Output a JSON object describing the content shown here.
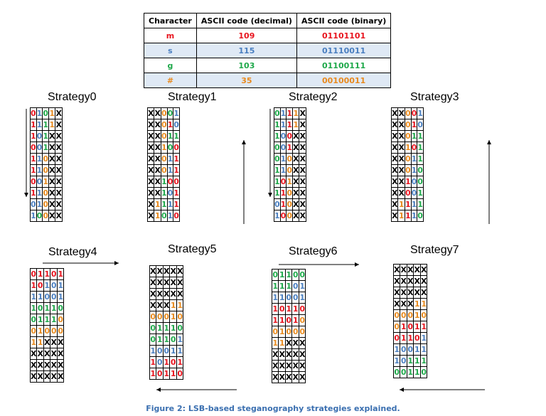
{
  "ascii_table": {
    "headers": [
      "Character",
      "ASCII code (decimal)",
      "ASCII code (binary)"
    ],
    "rows": [
      {
        "char": "m",
        "dec": "109",
        "bin": "01101101",
        "color": "#e8141e"
      },
      {
        "char": "s",
        "dec": "115",
        "bin": "01110011",
        "color": "#4a7fc0"
      },
      {
        "char": "g",
        "dec": "103",
        "bin": "01100111",
        "color": "#1ea84a"
      },
      {
        "char": "#",
        "dec": "35",
        "bin": "00100011",
        "color": "#e88a1e"
      }
    ]
  },
  "colors": {
    "R": "#e8141e",
    "B": "#4a7fc0",
    "G": "#1ea84a",
    "O": "#e88a1e",
    "X": "#000000"
  },
  "strategies": [
    {
      "title": "Strategy0",
      "arrow": "down-left",
      "rows": [
        "0R 1B 0G 1O X",
        "1R 1B 1G 1O X",
        "1R 0B 1G X X",
        "0R 0B 1G X X",
        "1R 1B 0O X X",
        "1R 1B 0O X X",
        "0R 0B 1O X X",
        "1R 1B 0O X X",
        "0B 1B 0O X X",
        "1B 0G 0O X X"
      ]
    },
    {
      "title": "Strategy1",
      "arrow": "up-right",
      "rows": [
        "X X 0O 0G 1B",
        "X X 0O 1R 0B",
        "X X 0O 1G 1G",
        "X X 1O 0G 0R",
        "X X 0O 1B 1R",
        "X X 0O 1B 1R",
        "X X 1G 0R 0R",
        "X X 1G 0B 1R",
        "X 1O 1G 1B 1R",
        "X 1O 0G 1B 0R"
      ]
    },
    {
      "title": "Strategy2",
      "arrow": "down-left",
      "rows": [
        "0G 1B 1R 1O X",
        "1G 1B 1R 1O X",
        "1G 0B 0R X X",
        "0G 0B 1R X X",
        "0G 1B 0O X X",
        "1G 1B 0O X X",
        "1G 0R 1O X X",
        "1G 1R 0O X X",
        "0B 1R 0O X X",
        "1B 0R 0O X X"
      ]
    },
    {
      "title": "Strategy3",
      "arrow": "up-right",
      "rows": [
        "X X 0O 0R 1B",
        "X X 0O 1R 0B",
        "X X 0O 1G 1G",
        "X X 1O 0R 1G",
        "X X 0O 1B 1G",
        "X X 0O 1B 0G",
        "X X 1R 0B 0G",
        "X X 0R 0B 1G",
        "X 1O 1R 1B 1G",
        "X 1O 1R 1B 0G"
      ]
    },
    {
      "title": "Strategy4",
      "arrow": "top-right",
      "rows": [
        "0R 1R 1R 0R 1R",
        "1R 0R 1B 0B 1B",
        "1B 1B 0B 0B 1B",
        "1G 0G 1G 1G 0G",
        "0G 1G 1G 1G 0O",
        "0O 1O 0O 0O 0O",
        "1O 1O X X X",
        "X X X X X",
        "X X X X X",
        "X X X X X"
      ]
    },
    {
      "title": "Strategy5",
      "arrow": "bottom-left",
      "rows": [
        "X X X X X",
        "X X X X X",
        "X X X X X",
        "X X X 1O 1O",
        "0O 0O 0O 1O 0O",
        "0G 1G 1G 1G 0G",
        "0G 1G 1G 0G 1B",
        "1B 0B 0B 1B 1B",
        "1R 0B 1R 0R 1R",
        "1R 0R 1R 1R 0R"
      ]
    },
    {
      "title": "Strategy6",
      "arrow": "top-right",
      "rows": [
        "0G 1G 1G 0G 0G",
        "1G 1G 1G 0B 1B",
        "1B 1B 0B 0B 1B",
        "1R 0R 1R 1R 0R",
        "1R 1R 0R 1R 0O",
        "0O 1O 0O 0O 0O",
        "1O 1O X X X",
        "X X X X X",
        "X X X X X",
        "X X X X X"
      ]
    },
    {
      "title": "Strategy7",
      "arrow": "bottom-left",
      "rows": [
        "X X X X X",
        "X X X X X",
        "X X X X X",
        "X X X 1O 1O",
        "0O 0O 0O 1O 0O",
        "0O 1R 0R 1R 1R",
        "0R 1R 1R 0R 1B",
        "1B 0B 0B 1B 1B",
        "1B 0B 1G 1G 1G",
        "0G 0G 1G 1G 0G"
      ]
    }
  ],
  "caption": "Figure 2: LSB-based steganography strategies explained."
}
